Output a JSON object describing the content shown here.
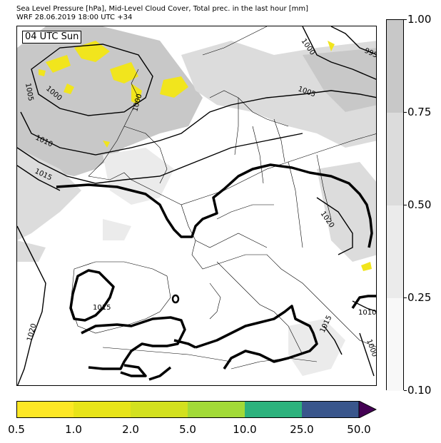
{
  "title_line1": "Sea Level Pressure [hPa], Mid-Level Cloud Cover, Total prec. in the last hour [mm]",
  "title_line2": "WRF 28.06.2019 18:00 UTC +34",
  "time_label": "04 UTC Sun",
  "cloud_colorbar": {
    "ticks": [
      "1.00",
      "0.75",
      "0.50",
      "0.25",
      "0.10"
    ],
    "colors": [
      "#c8c8c8",
      "#dcdcdc",
      "#ebebeb",
      "#f8f8f8"
    ]
  },
  "precip_colorbar": {
    "ticks": [
      "0.5",
      "1.0",
      "2.0",
      "5.0",
      "10.0",
      "25.0",
      "50.0"
    ],
    "colors": [
      "#fde725",
      "#e8e419",
      "#d3e01f",
      "#a2da37",
      "#2db27d",
      "#39568c",
      "#440154"
    ]
  },
  "isobar_labels": [
    "1000",
    "995",
    "1005",
    "1000",
    "1000",
    "1005",
    "1010",
    "1015",
    "1020",
    "1015",
    "1020",
    "1010",
    "1015",
    "1000"
  ]
}
